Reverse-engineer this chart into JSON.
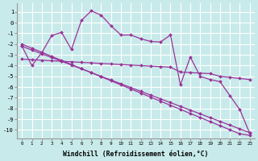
{
  "background_color": "#c8eaea",
  "grid_color": "#b0d8d8",
  "line_color": "#993399",
  "marker": "D",
  "marker_size": 2.0,
  "line_width": 0.9,
  "xlabel": "Windchill (Refroidissement éolien,°C)",
  "xlabel_fontsize": 5.8,
  "xlim": [
    -0.5,
    23.5
  ],
  "ylim": [
    -10.8,
    1.8
  ],
  "xtick_labels": [
    "0",
    "1",
    "2",
    "3",
    "4",
    "5",
    "6",
    "7",
    "8",
    "9",
    "10",
    "11",
    "12",
    "13",
    "14",
    "15",
    "16",
    "17",
    "18",
    "19",
    "20",
    "21",
    "22",
    "23"
  ],
  "ytick_values": [
    1,
    0,
    -1,
    -2,
    -3,
    -4,
    -5,
    -6,
    -7,
    -8,
    -9,
    -10
  ],
  "series": [
    {
      "x": [
        0,
        1,
        2,
        3,
        4,
        5,
        6,
        7,
        8,
        9,
        10,
        11,
        12,
        13,
        14,
        15,
        16,
        17,
        18,
        19,
        20,
        21,
        22,
        23
      ],
      "y": [
        -2.2,
        -4.0,
        -2.8,
        -1.2,
        -0.9,
        -2.5,
        0.2,
        1.1,
        0.7,
        -0.3,
        -1.15,
        -1.15,
        -1.5,
        -1.75,
        -1.8,
        -1.15,
        -5.8,
        -3.2,
        -5.0,
        -5.3,
        -5.5,
        -6.8,
        -8.1,
        -10.3
      ],
      "markers": true
    },
    {
      "x": [
        0,
        1,
        2,
        3,
        4,
        5,
        6,
        7,
        8,
        9,
        10,
        11,
        12,
        13,
        14,
        15,
        16,
        17,
        18,
        19,
        20,
        21,
        22,
        23
      ],
      "y": [
        -2.2,
        -2.55,
        -2.9,
        -3.25,
        -3.6,
        -3.95,
        -4.3,
        -4.65,
        -5.0,
        -5.35,
        -5.7,
        -6.05,
        -6.4,
        -6.75,
        -7.1,
        -7.45,
        -7.8,
        -8.15,
        -8.5,
        -8.85,
        -9.2,
        -9.55,
        -9.9,
        -10.25
      ],
      "markers": true
    },
    {
      "x": [
        0,
        1,
        2,
        3,
        4,
        5,
        6,
        7,
        8,
        9,
        10,
        11,
        12,
        13,
        14,
        15,
        16,
        17,
        18,
        19,
        20,
        21,
        22,
        23
      ],
      "y": [
        -2.0,
        -2.38,
        -2.76,
        -3.14,
        -3.52,
        -3.9,
        -4.28,
        -4.66,
        -5.04,
        -5.42,
        -5.8,
        -6.18,
        -6.56,
        -6.94,
        -7.32,
        -7.7,
        -8.08,
        -8.46,
        -8.84,
        -9.22,
        -9.6,
        -9.98,
        -10.36,
        -10.5
      ],
      "markers": true
    },
    {
      "x": [
        0,
        1,
        2,
        3,
        4,
        5,
        6,
        7,
        8,
        9,
        10,
        11,
        12,
        13,
        14,
        15,
        16,
        17,
        18,
        19,
        20,
        21,
        22,
        23
      ],
      "y": [
        -3.4,
        -3.45,
        -3.5,
        -3.55,
        -3.6,
        -3.65,
        -3.7,
        -3.75,
        -3.8,
        -3.85,
        -3.9,
        -3.95,
        -4.0,
        -4.05,
        -4.1,
        -4.15,
        -4.6,
        -4.65,
        -4.7,
        -4.75,
        -5.0,
        -5.1,
        -5.2,
        -5.3
      ],
      "markers": true
    }
  ]
}
